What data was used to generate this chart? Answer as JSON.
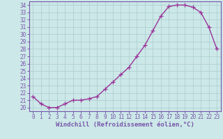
{
  "x": [
    0,
    1,
    2,
    3,
    4,
    5,
    6,
    7,
    8,
    9,
    10,
    11,
    12,
    13,
    14,
    15,
    16,
    17,
    18,
    19,
    20,
    21,
    22,
    23
  ],
  "y": [
    21.5,
    20.5,
    20.0,
    20.0,
    20.5,
    21.0,
    21.0,
    21.2,
    21.5,
    22.5,
    23.5,
    24.5,
    25.5,
    27.0,
    28.5,
    30.5,
    32.5,
    33.8,
    34.0,
    34.0,
    33.7,
    33.0,
    31.0,
    28.0
  ],
  "line_color": "#993399",
  "marker": "+",
  "markersize": 4,
  "linewidth": 1.0,
  "bg_color": "#cce8e8",
  "grid_color": "#aacccc",
  "xlabel": "Windchill (Refroidissement éolien,°C)",
  "xlabel_fontsize": 6.5,
  "tick_fontsize": 5.5,
  "xlim": [
    -0.5,
    23.5
  ],
  "ylim": [
    19.5,
    34.5
  ],
  "yticks": [
    20,
    21,
    22,
    23,
    24,
    25,
    26,
    27,
    28,
    29,
    30,
    31,
    32,
    33,
    34
  ],
  "xticks": [
    0,
    1,
    2,
    3,
    4,
    5,
    6,
    7,
    8,
    9,
    10,
    11,
    12,
    13,
    14,
    15,
    16,
    17,
    18,
    19,
    20,
    21,
    22,
    23
  ],
  "spine_color": "#7755aa",
  "tick_color": "#7755aa",
  "label_color": "#7755aa"
}
